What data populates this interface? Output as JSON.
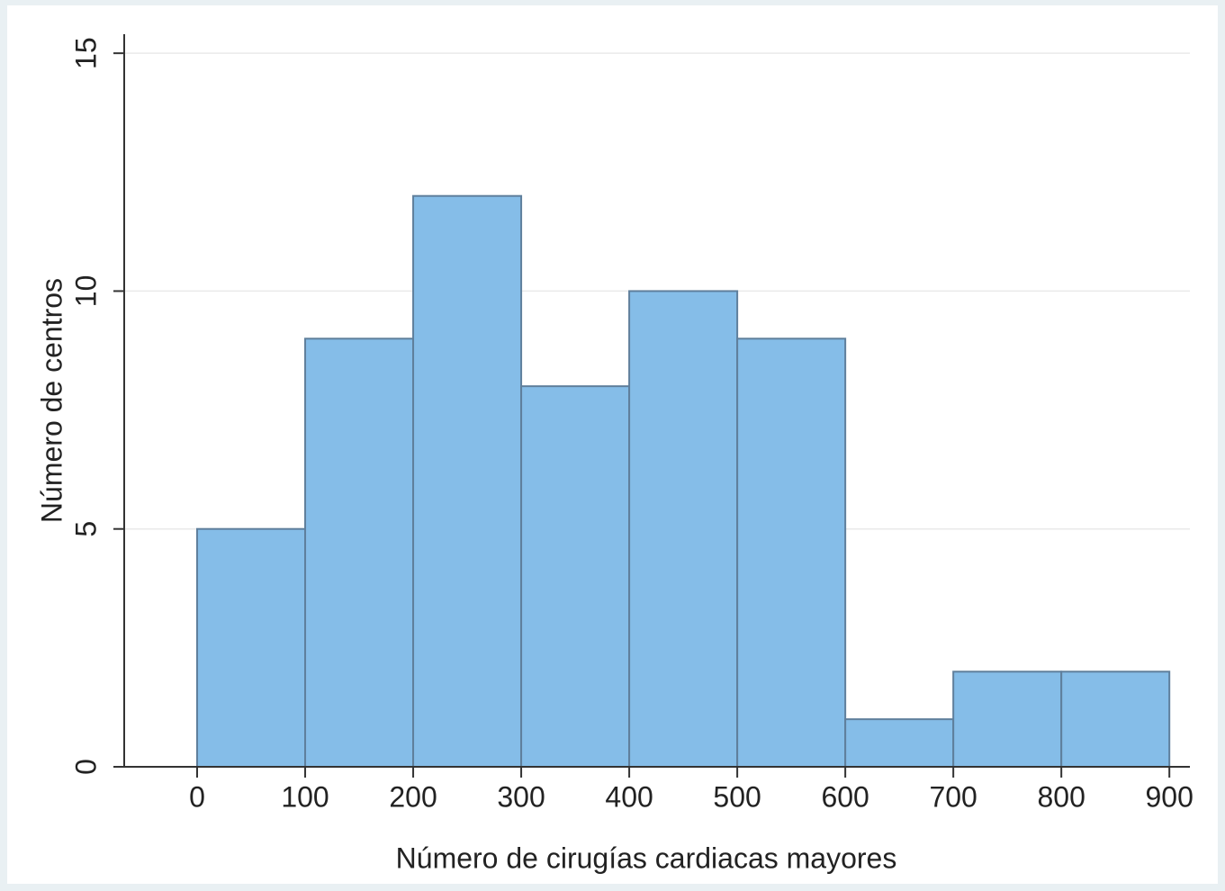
{
  "chart_data": {
    "type": "histogram",
    "xlabel": "Número de cirugías cardiacas mayores",
    "ylabel": "Número de centros",
    "bins": [
      0,
      100,
      200,
      300,
      400,
      500,
      600,
      700,
      800,
      900
    ],
    "values": [
      5,
      9,
      12,
      8,
      10,
      9,
      1,
      2,
      2
    ],
    "color": "#85bde8",
    "edgecolor": "#5f7f9c",
    "xlim": [
      -67.5,
      919
    ],
    "ylim": [
      0,
      15.4
    ],
    "xticks": [
      0,
      100,
      200,
      300,
      400,
      500,
      600,
      700,
      800,
      900
    ],
    "yticks": [
      0,
      5,
      10,
      15
    ],
    "grid": true
  }
}
